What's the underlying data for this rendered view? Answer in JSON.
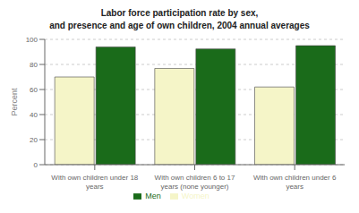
{
  "chart_data": {
    "type": "bar",
    "title": "Labor force participation rate by sex,\nand presence and age of own children, 2004 annual averages",
    "categories": [
      "With own children under 18\nyears",
      "With own children 6 to 17\nyears (none younger)",
      "With own children under 6\nyears"
    ],
    "series": [
      {
        "name": "Women",
        "color": "#f5f5c8",
        "values": [
          70.0,
          76.8,
          62.0
        ]
      },
      {
        "name": "Men",
        "color": "#1a6b1a",
        "values": [
          94.0,
          92.4,
          95.0
        ]
      }
    ],
    "y_label": "Percent",
    "ylim": [
      0,
      100
    ],
    "yticks": [
      0,
      20,
      40,
      60,
      80,
      100
    ],
    "grid": true,
    "legend": "bottom"
  }
}
